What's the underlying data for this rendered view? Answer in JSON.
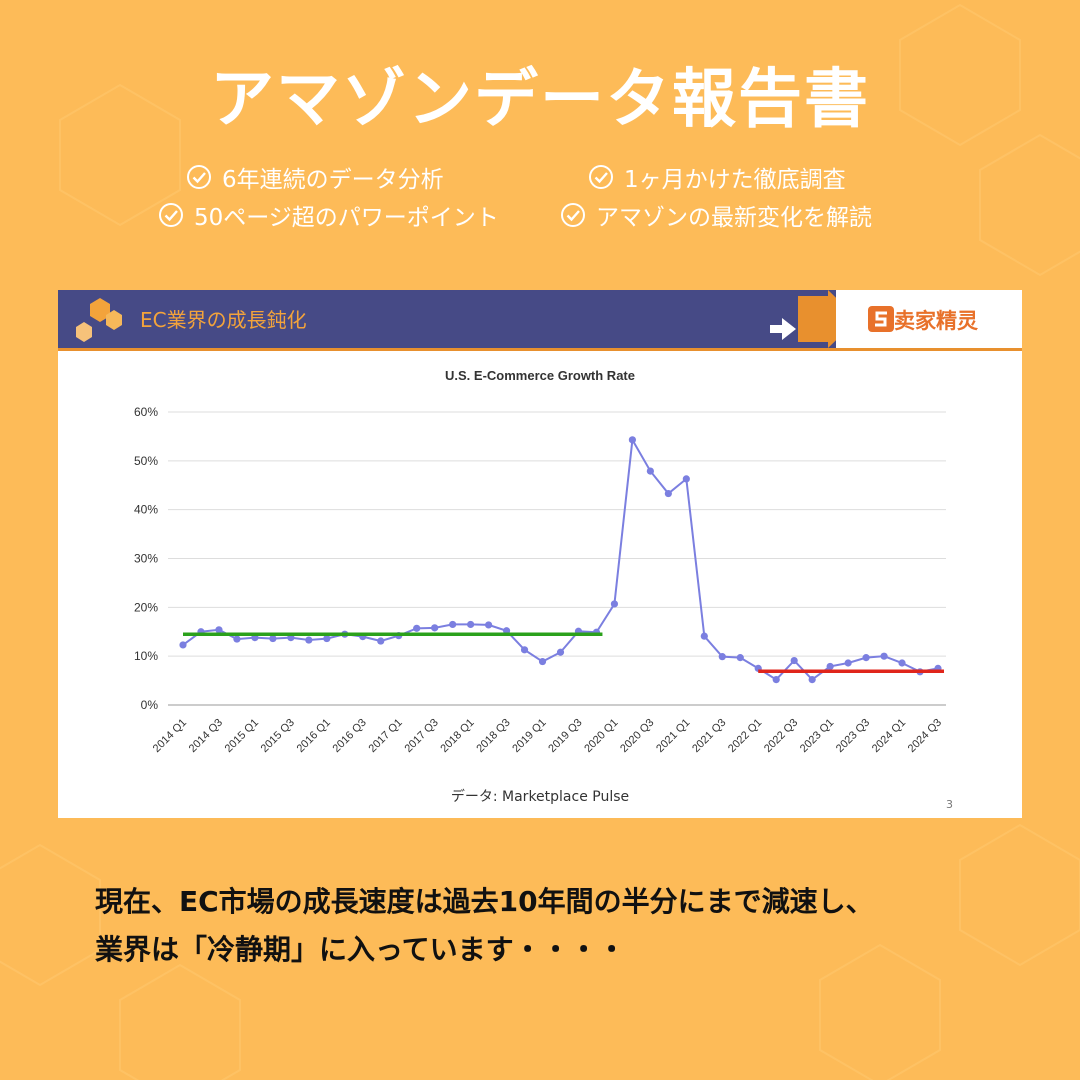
{
  "title": "アマゾンデータ報告書",
  "features": [
    {
      "label": "6年連続のデータ分析"
    },
    {
      "label": "1ヶ月かけた徹底調査"
    },
    {
      "label": "50ページ超のパワーポイント"
    },
    {
      "label": "アマゾンの最新変化を解読"
    }
  ],
  "slide": {
    "header_title": "EC業界の成長鈍化",
    "brand": "卖家精灵",
    "source": "データ:  Marketplace Pulse",
    "page_number": "3"
  },
  "bottom_text": {
    "line1": "現在、EC市場の成長速度は過去10年間の半分にまで減速し、",
    "line2": "業界は「冷静期」に入っています・・・・"
  },
  "colors": {
    "background": "#FDBB58",
    "header": "#464A86",
    "accent": "#E8902E",
    "series": "#7B7FE0",
    "trend_early": "#2BA11B",
    "trend_late": "#E0251B"
  },
  "chart_data": {
    "type": "line",
    "title": "U.S. E-Commerce Growth Rate",
    "ylim": [
      0,
      60
    ],
    "yticks": [
      "0%",
      "10%",
      "20%",
      "30%",
      "40%",
      "50%",
      "60%"
    ],
    "grid": true,
    "categories": [
      "2014 Q1",
      "2014 Q2",
      "2014 Q3",
      "2014 Q4",
      "2015 Q1",
      "2015 Q2",
      "2015 Q3",
      "2015 Q4",
      "2016 Q1",
      "2016 Q2",
      "2016 Q3",
      "2016 Q4",
      "2017 Q1",
      "2017 Q2",
      "2017 Q3",
      "2017 Q4",
      "2018 Q1",
      "2018 Q2",
      "2018 Q3",
      "2018 Q4",
      "2019 Q1",
      "2019 Q2",
      "2019 Q3",
      "2019 Q4",
      "2020 Q1",
      "2020 Q2",
      "2020 Q3",
      "2020 Q4",
      "2021 Q1",
      "2021 Q2",
      "2021 Q3",
      "2021 Q4",
      "2022 Q1",
      "2022 Q2",
      "2022 Q3",
      "2022 Q4",
      "2023 Q1",
      "2023 Q2",
      "2023 Q3",
      "2023 Q4",
      "2024 Q1",
      "2024 Q2",
      "2024 Q3"
    ],
    "xtick_labels": [
      "2014 Q1",
      "2014 Q3",
      "2015 Q1",
      "2015 Q3",
      "2016 Q1",
      "2016 Q3",
      "2017 Q1",
      "2017 Q3",
      "2018 Q1",
      "2018 Q3",
      "2019 Q1",
      "2019 Q3",
      "2020 Q1",
      "2020 Q3",
      "2021 Q1",
      "2021 Q3",
      "2022 Q1",
      "2022 Q3",
      "2023 Q1",
      "2023 Q3",
      "2024 Q1",
      "2024 Q3"
    ],
    "series": [
      {
        "values": [
          12.3,
          15.0,
          15.4,
          13.5,
          13.8,
          13.6,
          13.8,
          13.3,
          13.6,
          14.5,
          14.0,
          13.1,
          14.2,
          15.7,
          15.8,
          16.5,
          16.5,
          16.4,
          15.2,
          11.3,
          8.9,
          10.8,
          15.1,
          14.9,
          20.7,
          54.3,
          47.9,
          43.3,
          46.3,
          14.1,
          9.9,
          9.7,
          7.5,
          5.2,
          9.1,
          5.2,
          7.9,
          8.6,
          9.7,
          10.0,
          8.6,
          6.8,
          7.5
        ]
      }
    ],
    "trend_lines": [
      {
        "from": "2014 Q1",
        "to": "2019 Q4",
        "value": 14.5
      },
      {
        "from": "2022 Q1",
        "to": "2024 Q3",
        "value": 6.9
      }
    ]
  }
}
